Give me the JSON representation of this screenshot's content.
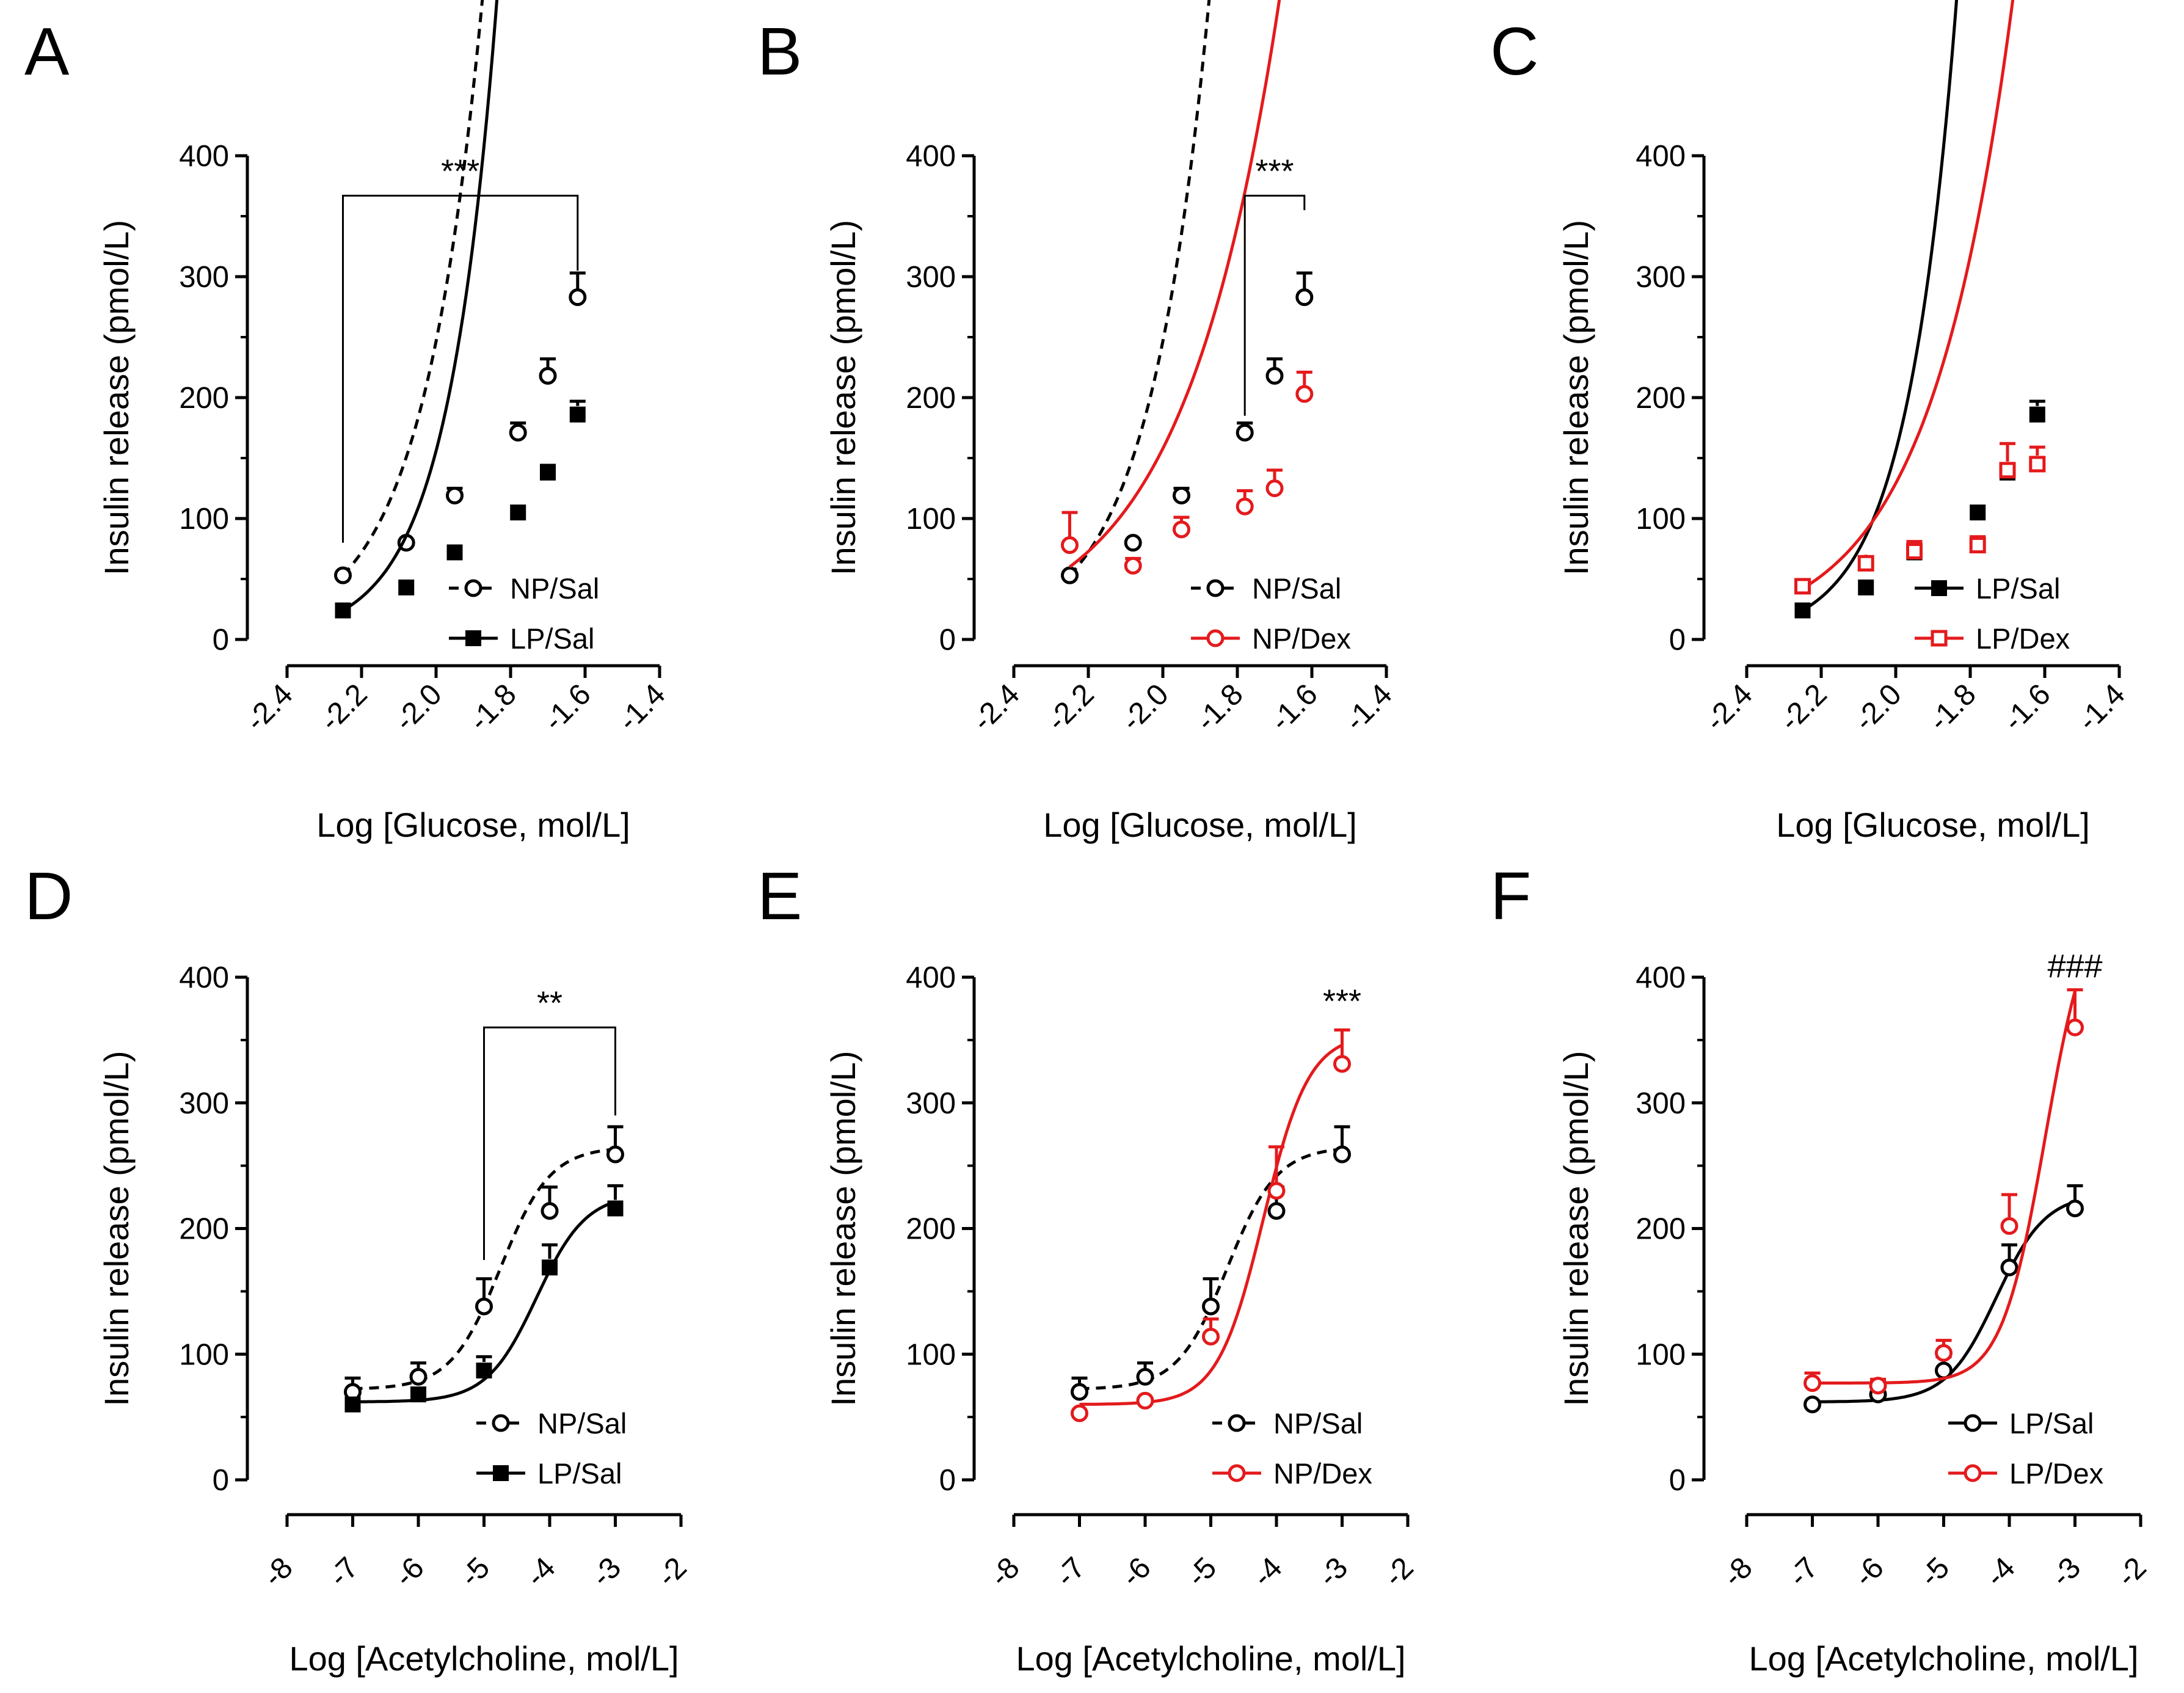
{
  "colors": {
    "black": "#000000",
    "red": "#e41a1c"
  },
  "chart_data": [
    {
      "panel": "A",
      "type": "line",
      "xlabel": "Log [Glucose, mol/L]",
      "ylabel": "Insulin release (pmol/L)",
      "xlim": [
        -2.4,
        -1.4
      ],
      "ylim": [
        0,
        400
      ],
      "xticks": [
        -2.4,
        -2.2,
        -2.0,
        -1.8,
        -1.6,
        -1.4
      ],
      "xtick_labels": [
        "-2.4",
        "-2.2",
        "-2.0",
        "-1.8",
        "-1.6",
        "-1.4"
      ],
      "yticks": [
        0,
        100,
        200,
        300,
        400
      ],
      "ytick_labels": [
        "0",
        "100",
        "200",
        "300",
        "400"
      ],
      "series": [
        {
          "name": "NP/Sal",
          "color": "#000000",
          "marker": "open-circle",
          "dashed": true,
          "x": [
            -2.25,
            -2.08,
            -1.95,
            -1.78,
            -1.7,
            -1.62
          ],
          "y": [
            53,
            80,
            119,
            171,
            218,
            283
          ],
          "err": [
            0,
            0,
            6,
            8,
            14,
            20
          ],
          "fit": {
            "a": 53,
            "b": 2.67,
            "x0": -2.25
          }
        },
        {
          "name": "LP/Sal",
          "color": "#000000",
          "marker": "filled-square",
          "dashed": false,
          "x": [
            -2.25,
            -2.08,
            -1.95,
            -1.78,
            -1.7,
            -1.62
          ],
          "y": [
            24,
            43,
            72,
            105,
            138,
            186
          ],
          "err": [
            0,
            0,
            0,
            0,
            6,
            11
          ],
          "fit": {
            "a": 24,
            "b": 3.25,
            "x0": -2.25
          }
        }
      ],
      "annotation": {
        "text": "***",
        "bracket_from": -2.25,
        "bracket_to": -1.62,
        "bracket_top": 367,
        "bracket_left_bottom": 80,
        "bracket_right_bottom": 305
      }
    },
    {
      "panel": "B",
      "type": "line",
      "xlabel": "Log [Glucose, mol/L]",
      "ylabel": "Insulin release (pmol/L)",
      "xlim": [
        -2.4,
        -1.4
      ],
      "ylim": [
        0,
        400
      ],
      "xticks": [
        -2.4,
        -2.2,
        -2.0,
        -1.8,
        -1.6,
        -1.4
      ],
      "xtick_labels": [
        "-2.4",
        "-2.2",
        "-2.0",
        "-1.8",
        "-1.6",
        "-1.4"
      ],
      "yticks": [
        0,
        100,
        200,
        300,
        400
      ],
      "ytick_labels": [
        "0",
        "100",
        "200",
        "300",
        "400"
      ],
      "series": [
        {
          "name": "NP/Sal",
          "color": "#000000",
          "marker": "open-circle",
          "dashed": true,
          "x": [
            -2.25,
            -2.08,
            -1.95,
            -1.78,
            -1.7,
            -1.62
          ],
          "y": [
            53,
            80,
            119,
            171,
            218,
            283
          ],
          "err": [
            0,
            0,
            6,
            8,
            14,
            20
          ],
          "fit": {
            "a": 53,
            "b": 2.67,
            "x0": -2.25
          }
        },
        {
          "name": "NP/Dex",
          "color": "#e41a1c",
          "marker": "open-circle",
          "dashed": false,
          "x": [
            -2.25,
            -2.08,
            -1.95,
            -1.78,
            -1.7,
            -1.62
          ],
          "y": [
            78,
            61,
            91,
            110,
            125,
            203
          ],
          "err": [
            27,
            6,
            10,
            13,
            15,
            18
          ],
          "fit": {
            "a": 60,
            "b": 1.68,
            "x0": -2.25
          }
        }
      ],
      "annotation": {
        "text": "***",
        "bracket_from": -1.78,
        "bracket_to": -1.62,
        "bracket_top": 367,
        "bracket_left_bottom": 185,
        "bracket_right_bottom": 355
      }
    },
    {
      "panel": "C",
      "type": "line",
      "xlabel": "Log [Glucose, mol/L]",
      "ylabel": "Insulin release (pmol/L)",
      "xlim": [
        -2.4,
        -1.4
      ],
      "ylim": [
        0,
        400
      ],
      "xticks": [
        -2.4,
        -2.2,
        -2.0,
        -1.8,
        -1.6,
        -1.4
      ],
      "xtick_labels": [
        "-2.4",
        "-2.2",
        "-2.0",
        "-1.8",
        "-1.6",
        "-1.4"
      ],
      "yticks": [
        0,
        100,
        200,
        300,
        400
      ],
      "ytick_labels": [
        "0",
        "100",
        "200",
        "300",
        "400"
      ],
      "series": [
        {
          "name": "LP/Sal",
          "color": "#000000",
          "marker": "filled-square",
          "dashed": false,
          "x": [
            -2.25,
            -2.08,
            -1.95,
            -1.78,
            -1.7,
            -1.62
          ],
          "y": [
            24,
            43,
            72,
            105,
            138,
            186
          ],
          "err": [
            0,
            0,
            0,
            0,
            6,
            11
          ],
          "fit": {
            "a": 24,
            "b": 3.25,
            "x0": -2.25
          }
        },
        {
          "name": "LP/Dex",
          "color": "#e41a1c",
          "marker": "open-square",
          "dashed": false,
          "x": [
            -2.25,
            -2.08,
            -1.95,
            -1.78,
            -1.7,
            -1.62
          ],
          "y": [
            44,
            63,
            73,
            78,
            140,
            145
          ],
          "err": [
            0,
            5,
            8,
            7,
            22,
            14
          ],
          "fit": {
            "a": 42,
            "b": 1.95,
            "x0": -2.25
          }
        }
      ]
    },
    {
      "panel": "D",
      "type": "line",
      "xlabel": "Log [Acetylcholine, mol/L]",
      "ylabel": "Insulin release (pmol/L)",
      "xlim": [
        -8,
        -2
      ],
      "ylim": [
        0,
        400
      ],
      "xticks": [
        -8,
        -7,
        -6,
        -5,
        -4,
        -3,
        -2
      ],
      "xtick_labels": [
        "-8",
        "-7",
        "-6",
        "-5",
        "-4",
        "-3",
        "-2"
      ],
      "yticks": [
        0,
        100,
        200,
        300,
        400
      ],
      "ytick_labels": [
        "0",
        "100",
        "200",
        "300",
        "400"
      ],
      "series": [
        {
          "name": "NP/Sal",
          "color": "#000000",
          "marker": "open-circle",
          "dashed": true,
          "x": [
            -7,
            -6,
            -5,
            -4,
            -3
          ],
          "y": [
            70,
            82,
            138,
            214,
            259
          ],
          "err": [
            11,
            11,
            22,
            19,
            22
          ],
          "fit": {
            "bottom": 72,
            "top": 265,
            "ec50": -4.75,
            "hill": 1.15
          }
        },
        {
          "name": "LP/Sal",
          "color": "#000000",
          "marker": "filled-square",
          "dashed": false,
          "x": [
            -7,
            -6,
            -5,
            -4,
            -3
          ],
          "y": [
            60,
            68,
            87,
            169,
            216
          ],
          "err": [
            0,
            0,
            11,
            18,
            18
          ],
          "fit": {
            "bottom": 62,
            "top": 228,
            "ec50": -4.2,
            "hill": 1.15
          }
        }
      ],
      "annotation": {
        "text": "**",
        "bracket_from": -5,
        "bracket_to": -3,
        "bracket_top": 360,
        "bracket_left_bottom": 175,
        "bracket_right_bottom": 290
      }
    },
    {
      "panel": "E",
      "type": "line",
      "xlabel": "Log [Acetylcholine, mol/L]",
      "ylabel": "Insulin release (pmol/L)",
      "xlim": [
        -8,
        -2
      ],
      "ylim": [
        0,
        400
      ],
      "xticks": [
        -8,
        -7,
        -6,
        -5,
        -4,
        -3,
        -2
      ],
      "xtick_labels": [
        "-8",
        "-7",
        "-6",
        "-5",
        "-4",
        "-3",
        "-2"
      ],
      "yticks": [
        0,
        100,
        200,
        300,
        400
      ],
      "ytick_labels": [
        "0",
        "100",
        "200",
        "300",
        "400"
      ],
      "series": [
        {
          "name": "NP/Sal",
          "color": "#000000",
          "marker": "open-circle",
          "dashed": true,
          "x": [
            -7,
            -6,
            -5,
            -4,
            -3
          ],
          "y": [
            70,
            82,
            138,
            214,
            259
          ],
          "err": [
            11,
            11,
            22,
            19,
            22
          ],
          "fit": {
            "bottom": 72,
            "top": 265,
            "ec50": -4.75,
            "hill": 1.15
          }
        },
        {
          "name": "NP/Dex",
          "color": "#e41a1c",
          "marker": "open-circle",
          "dashed": false,
          "x": [
            -7,
            -6,
            -5,
            -4,
            -3
          ],
          "y": [
            53,
            63,
            114,
            230,
            331
          ],
          "err": [
            0,
            0,
            14,
            35,
            27
          ],
          "fit": {
            "bottom": 60,
            "top": 355,
            "ec50": -4.2,
            "hill": 1.25
          }
        }
      ],
      "annotation": {
        "text": "***",
        "at_x": -3,
        "at_y": 372
      }
    },
    {
      "panel": "F",
      "type": "line",
      "xlabel": "Log [Acetylcholine, mol/L]",
      "ylabel": "Insulin release (pmol/L)",
      "xlim": [
        -8,
        -2
      ],
      "ylim": [
        0,
        400
      ],
      "xticks": [
        -8,
        -7,
        -6,
        -5,
        -4,
        -3,
        -2
      ],
      "xtick_labels": [
        "-8",
        "-7",
        "-6",
        "-5",
        "-4",
        "-3",
        "-2"
      ],
      "yticks": [
        0,
        100,
        200,
        300,
        400
      ],
      "ytick_labels": [
        "0",
        "100",
        "200",
        "300",
        "400"
      ],
      "series": [
        {
          "name": "LP/Sal",
          "color": "#000000",
          "marker": "open-circle",
          "dashed": false,
          "x": [
            -7,
            -6,
            -5,
            -4,
            -3
          ],
          "y": [
            60,
            68,
            87,
            169,
            216
          ],
          "err": [
            0,
            11,
            11,
            18,
            18
          ],
          "fit": {
            "bottom": 62,
            "top": 228,
            "ec50": -4.2,
            "hill": 1.15
          }
        },
        {
          "name": "LP/Dex",
          "color": "#e41a1c",
          "marker": "open-circle",
          "dashed": false,
          "x": [
            -7,
            -6,
            -5,
            -4,
            -3
          ],
          "y": [
            77,
            75,
            101,
            202,
            360
          ],
          "err": [
            8,
            5,
            10,
            25,
            30
          ],
          "fit": {
            "bottom": 77,
            "top": 470,
            "ec50": -3.45,
            "hill": 1.3
          }
        }
      ],
      "annotation": {
        "text": "###",
        "at_x": -3,
        "at_y": 400
      }
    }
  ]
}
